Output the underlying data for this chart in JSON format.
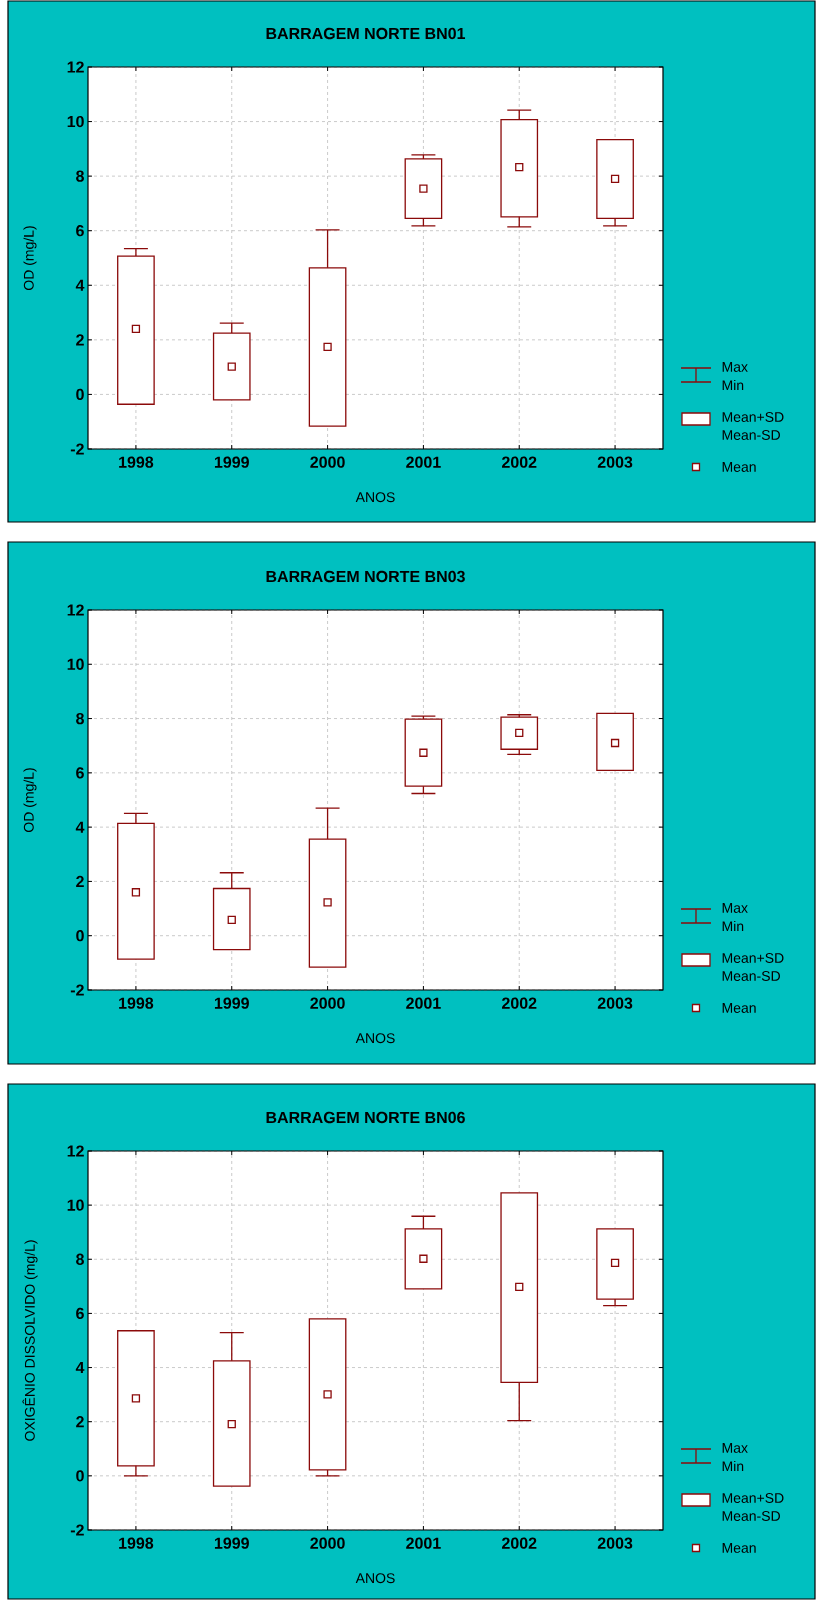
{
  "chart_data": [
    {
      "type": "box",
      "title": "BARRAGEM NORTE    BN01",
      "xlabel": "ANOS",
      "ylabel": "OD (mg/L)",
      "categories": [
        "1998",
        "1999",
        "2000",
        "2001",
        "2002",
        "2003"
      ],
      "color": "#8b0a0a",
      "marker": "square",
      "grid": true,
      "ylim": [
        -2,
        12
      ],
      "yticks": [
        -2,
        0,
        2,
        4,
        6,
        8,
        10,
        12
      ],
      "boxes": [
        {
          "low": -0.36,
          "q1": -0.36,
          "q3": 5.07,
          "high": 5.34,
          "mean": 2.4
        },
        {
          "low": -0.2,
          "q1": -0.2,
          "q3": 2.25,
          "high": 2.61,
          "mean": 1.02
        },
        {
          "low": -1.16,
          "q1": -1.16,
          "q3": 4.64,
          "high": 6.03,
          "mean": 1.74
        },
        {
          "low": 6.18,
          "q1": 6.45,
          "q3": 8.63,
          "high": 8.78,
          "mean": 7.54
        },
        {
          "low": 6.14,
          "q1": 6.51,
          "q3": 10.07,
          "high": 10.42,
          "mean": 8.33
        },
        {
          "low": 6.18,
          "q1": 6.45,
          "q3": 9.34,
          "high": 9.34,
          "mean": 7.9
        }
      ],
      "annotations": [
        "Max",
        "Min",
        "Mean+SD",
        "Mean-SD",
        "Mean"
      ]
    },
    {
      "type": "box",
      "title": "BARRAGEM NORTE BN03",
      "xlabel": "ANOS",
      "ylabel": "OD (mg/L)",
      "categories": [
        "1998",
        "1999",
        "2000",
        "2001",
        "2002",
        "2003"
      ],
      "color": "#8b0a0a",
      "marker": "square",
      "grid": true,
      "ylim": [
        -2,
        12
      ],
      "yticks": [
        -2,
        0,
        2,
        4,
        6,
        8,
        10,
        12
      ],
      "boxes": [
        {
          "low": -0.86,
          "q1": -0.86,
          "q3": 4.14,
          "high": 4.51,
          "mean": 1.6
        },
        {
          "low": -0.51,
          "q1": -0.51,
          "q3": 1.74,
          "high": 2.32,
          "mean": 0.58
        },
        {
          "low": -1.16,
          "q1": -1.16,
          "q3": 3.56,
          "high": 4.7,
          "mean": 1.23
        },
        {
          "low": 5.24,
          "q1": 5.51,
          "q3": 7.98,
          "high": 8.09,
          "mean": 6.74
        },
        {
          "low": 6.68,
          "q1": 6.87,
          "q3": 8.05,
          "high": 8.14,
          "mean": 7.47
        },
        {
          "low": 6.09,
          "q1": 6.09,
          "q3": 8.19,
          "high": 8.19,
          "mean": 7.1
        }
      ],
      "annotations": [
        "Max",
        "Min",
        "Mean+SD",
        "Mean-SD",
        "Mean"
      ]
    },
    {
      "type": "box",
      "title": "BARRAGEM NORTE    BN06",
      "xlabel": "ANOS",
      "ylabel": "OXIGÊNIO DISSOLVIDO (mg/L)",
      "categories": [
        "1998",
        "1999",
        "2000",
        "2001",
        "2002",
        "2003"
      ],
      "color": "#8b0a0a",
      "marker": "square",
      "grid": true,
      "ylim": [
        -2,
        12
      ],
      "yticks": [
        -2,
        0,
        2,
        4,
        6,
        8,
        10,
        12
      ],
      "boxes": [
        {
          "low": 0,
          "q1": 0.37,
          "q3": 5.36,
          "high": 5.36,
          "mean": 2.86
        },
        {
          "low": -0.38,
          "q1": -0.38,
          "q3": 4.25,
          "high": 5.29,
          "mean": 1.91
        },
        {
          "low": 0,
          "q1": 0.22,
          "q3": 5.8,
          "high": 5.8,
          "mean": 3.01
        },
        {
          "low": 6.91,
          "q1": 6.91,
          "q3": 9.12,
          "high": 9.59,
          "mean": 8.02
        },
        {
          "low": 2.04,
          "q1": 3.45,
          "q3": 10.45,
          "high": 10.45,
          "mean": 6.98
        },
        {
          "low": 6.29,
          "q1": 6.53,
          "q3": 9.12,
          "high": 9.12,
          "mean": 7.87
        }
      ],
      "annotations": [
        "Max",
        "Min",
        "Mean+SD",
        "Mean-SD",
        "Mean"
      ]
    }
  ]
}
